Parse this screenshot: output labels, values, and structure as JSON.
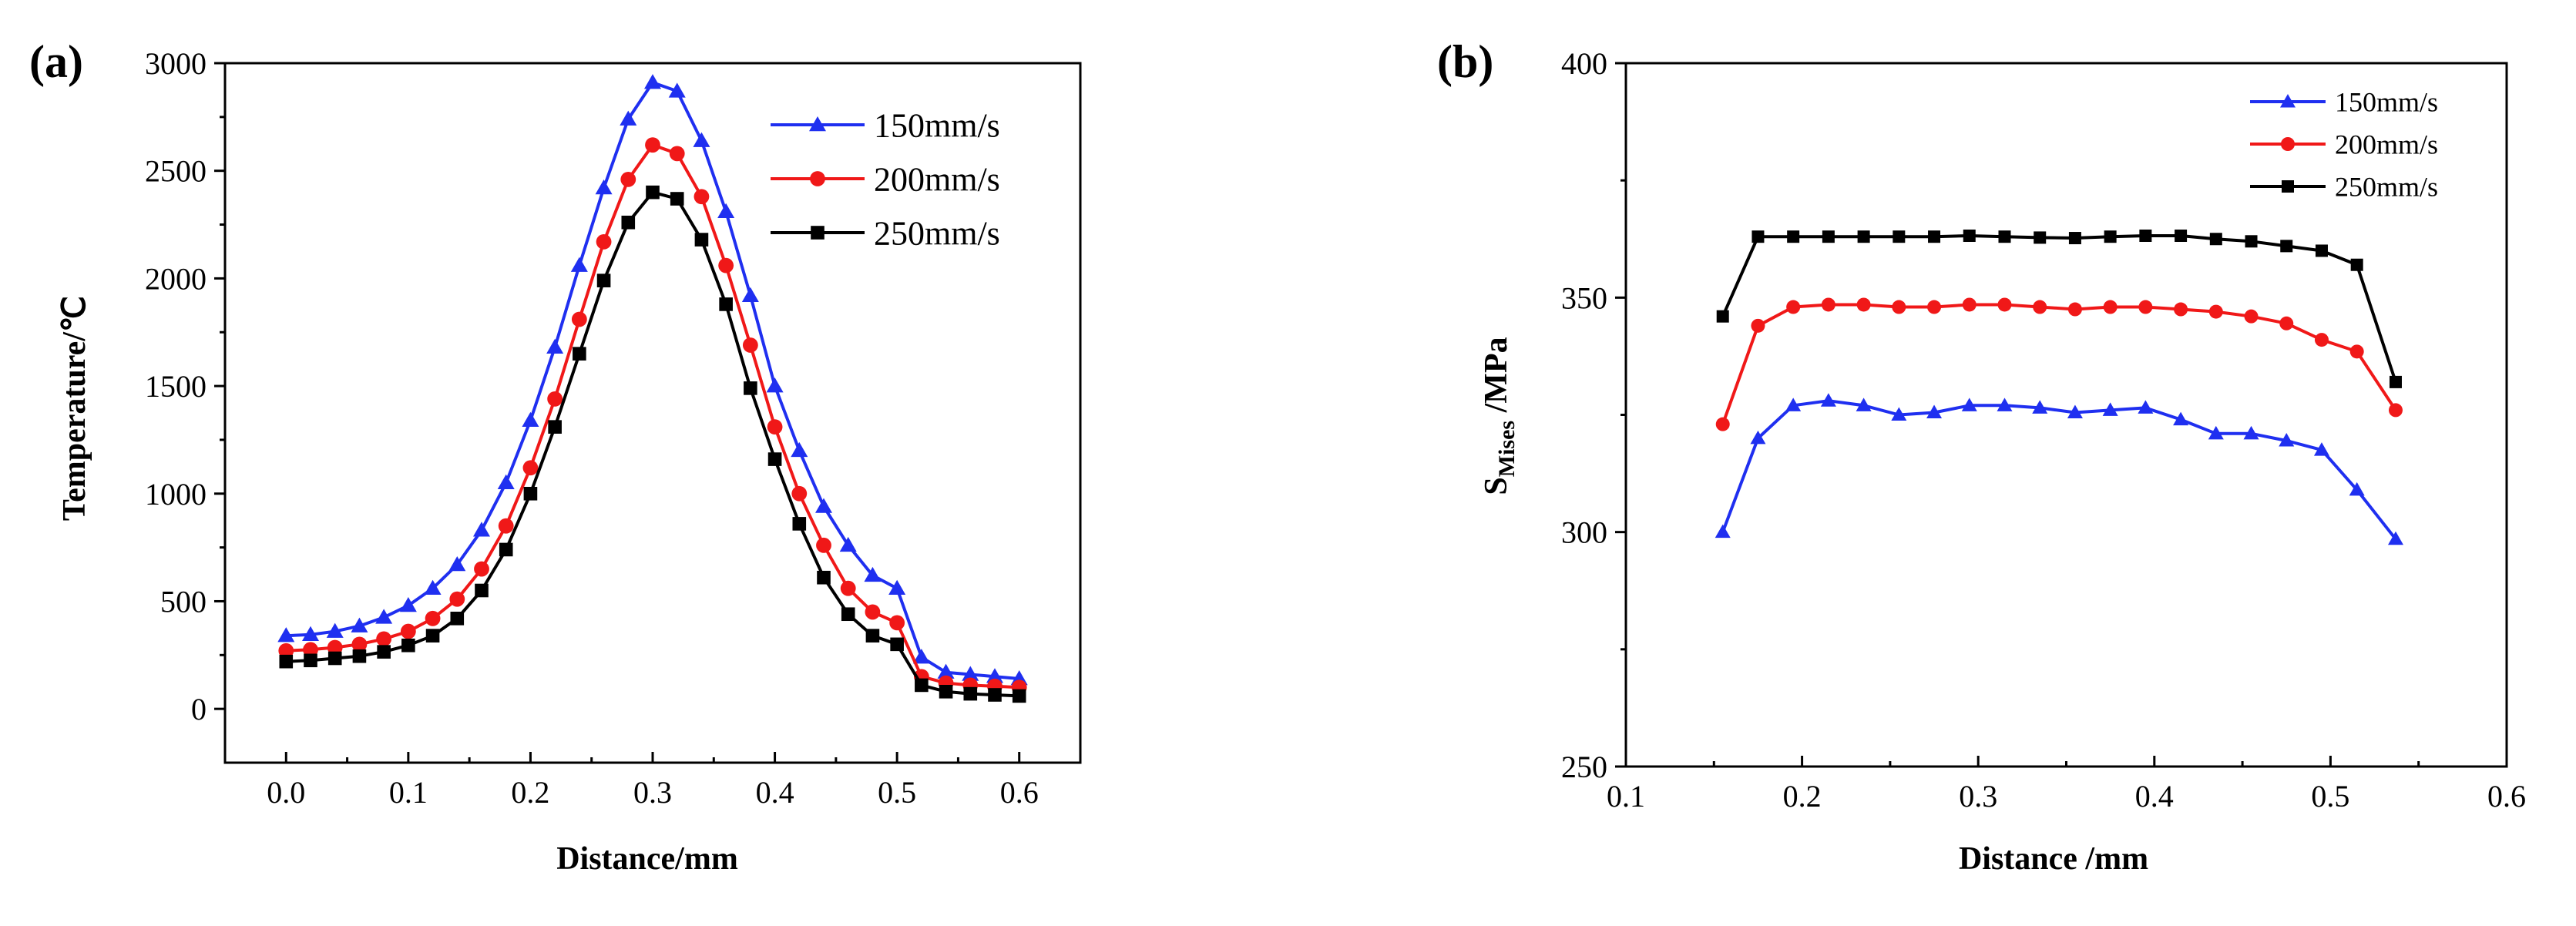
{
  "chart_data": [
    {
      "panel": "(a)",
      "type": "line",
      "title": "",
      "xlabel": "Distance/mm",
      "ylabel": "Temperature/℃",
      "xlim": [
        -0.05,
        0.65
      ],
      "ylim": [
        -250,
        3000
      ],
      "xticks": [
        "0.0",
        "0.1",
        "0.2",
        "0.3",
        "0.4",
        "0.5",
        "0.6"
      ],
      "yticks": [
        "0",
        "500",
        "1000",
        "1500",
        "2000",
        "2500",
        "3000"
      ],
      "legend_position": "top-right",
      "x": [
        0.0,
        0.02,
        0.04,
        0.06,
        0.08,
        0.1,
        0.12,
        0.14,
        0.16,
        0.18,
        0.2,
        0.22,
        0.24,
        0.26,
        0.28,
        0.3,
        0.32,
        0.34,
        0.36,
        0.38,
        0.4,
        0.42,
        0.44,
        0.46,
        0.48,
        0.5,
        0.52,
        0.54,
        0.56,
        0.58,
        0.6
      ],
      "series": [
        {
          "name": "150mm/s",
          "color": "#1f2ff0",
          "marker": "triangle",
          "values": [
            340,
            345,
            360,
            385,
            425,
            480,
            560,
            670,
            830,
            1050,
            1340,
            1680,
            2060,
            2420,
            2740,
            2910,
            2870,
            2640,
            2310,
            1920,
            1500,
            1200,
            940,
            760,
            620,
            560,
            240,
            170,
            160,
            150,
            140
          ]
        },
        {
          "name": "200mm/s",
          "color": "#f01818",
          "marker": "circle",
          "values": [
            270,
            275,
            285,
            300,
            325,
            360,
            420,
            510,
            650,
            850,
            1120,
            1440,
            1810,
            2170,
            2460,
            2620,
            2580,
            2380,
            2060,
            1690,
            1310,
            1000,
            760,
            560,
            450,
            400,
            150,
            120,
            110,
            105,
            100
          ]
        },
        {
          "name": "250mm/s",
          "color": "#000000",
          "marker": "square",
          "values": [
            220,
            225,
            235,
            245,
            265,
            295,
            340,
            420,
            550,
            740,
            1000,
            1310,
            1650,
            1990,
            2260,
            2400,
            2370,
            2180,
            1880,
            1490,
            1160,
            860,
            610,
            440,
            340,
            300,
            110,
            80,
            70,
            65,
            60
          ]
        }
      ]
    },
    {
      "panel": "(b)",
      "type": "line",
      "title": "",
      "xlabel": "Distance /mm",
      "ylabel_main": "S",
      "ylabel_sub": "Mises",
      "ylabel_tail": " /MPa",
      "xlim": [
        0.1,
        0.6
      ],
      "ylim": [
        250,
        400
      ],
      "xticks": [
        "0.1",
        "0.2",
        "0.3",
        "0.4",
        "0.5",
        "0.6"
      ],
      "yticks": [
        "250",
        "300",
        "350",
        "400"
      ],
      "legend_position": "top-right",
      "x": [
        0.155,
        0.175,
        0.195,
        0.215,
        0.235,
        0.255,
        0.275,
        0.295,
        0.315,
        0.335,
        0.355,
        0.375,
        0.395,
        0.415,
        0.435,
        0.455,
        0.475,
        0.495,
        0.515,
        0.537
      ],
      "series": [
        {
          "name": "150mm/s",
          "color": "#1f2ff0",
          "marker": "triangle",
          "values": [
            300,
            320,
            327,
            328,
            327,
            325,
            325.5,
            327,
            327,
            326.5,
            325.5,
            326,
            326.5,
            324,
            321,
            321,
            319.5,
            317.5,
            309,
            298.5
          ]
        },
        {
          "name": "200mm/s",
          "color": "#f01818",
          "marker": "circle",
          "values": [
            323,
            344,
            348,
            348.5,
            348.5,
            348,
            348,
            348.5,
            348.5,
            348,
            347.5,
            348,
            348,
            347.5,
            347,
            346,
            344.5,
            341,
            338.5,
            326
          ]
        },
        {
          "name": "250mm/s",
          "color": "#000000",
          "marker": "square",
          "values": [
            346,
            363,
            363,
            363,
            363,
            363,
            363,
            363.2,
            363,
            362.8,
            362.7,
            363,
            363.2,
            363.2,
            362.5,
            362,
            361,
            360,
            357,
            332
          ]
        }
      ]
    }
  ]
}
